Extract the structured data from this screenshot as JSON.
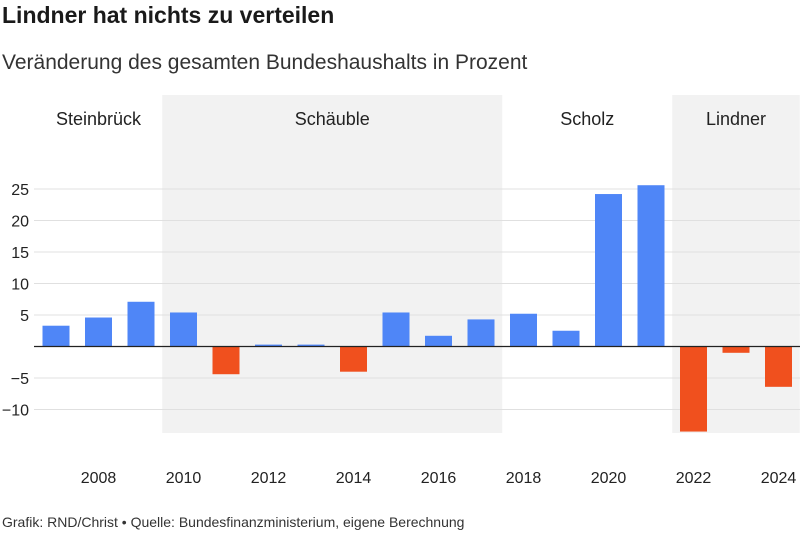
{
  "title": "Lindner hat nichts zu verteilen",
  "subtitle": "Veränderung des gesamten Bundeshaushalts in Prozent",
  "footer": "Grafik: RND/Christ • Quelle: Bundesfinanzministerium, eigene Berechnung",
  "colors": {
    "positive": "#4f86f7",
    "negative": "#f0501e",
    "shade": "#f2f2f2",
    "grid": "#e0e0e0"
  },
  "chart_data": {
    "type": "bar",
    "title": "Lindner hat nichts zu verteilen",
    "subtitle": "Veränderung des gesamten Bundeshaushalts in Prozent",
    "xlabel": "",
    "ylabel": "",
    "x": [
      2007,
      2008,
      2009,
      2010,
      2011,
      2012,
      2013,
      2014,
      2015,
      2016,
      2017,
      2018,
      2019,
      2020,
      2021,
      2022,
      2023,
      2024
    ],
    "values": [
      3.3,
      4.6,
      7.1,
      5.4,
      -4.4,
      0.3,
      0.3,
      -4.0,
      5.4,
      1.7,
      4.3,
      5.2,
      2.5,
      24.2,
      25.6,
      -13.5,
      -1.0,
      -6.4
    ],
    "ylim": [
      -14,
      28
    ],
    "yticks": [
      -10,
      -5,
      5,
      10,
      15,
      20,
      25
    ],
    "ytick_labels": [
      "−10",
      "−5",
      "5",
      "10",
      "15",
      "20",
      "25"
    ],
    "xticks": [
      2008,
      2010,
      2012,
      2014,
      2016,
      2018,
      2020,
      2022,
      2024
    ],
    "xtick_labels": [
      "2008",
      "2010",
      "2012",
      "2014",
      "2016",
      "2018",
      "2020",
      "2022",
      "2024"
    ],
    "grid": true,
    "periods": [
      {
        "label": "Steinbrück",
        "from": 2007,
        "to": 2009,
        "shaded": false
      },
      {
        "label": "Schäuble",
        "from": 2010,
        "to": 2017,
        "shaded": true
      },
      {
        "label": "Scholz",
        "from": 2018,
        "to": 2021,
        "shaded": false
      },
      {
        "label": "Lindner",
        "from": 2022,
        "to": 2024,
        "shaded": true
      }
    ]
  }
}
